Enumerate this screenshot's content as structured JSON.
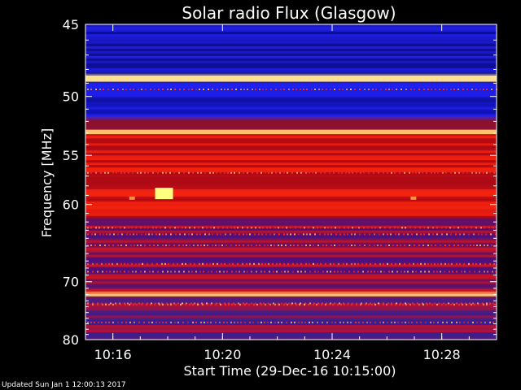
{
  "chart_data": {
    "type": "heatmap",
    "title": "Solar radio Flux (Glasgow)",
    "xlabel": "Start Time (29-Dec-16 10:15:00)",
    "ylabel": "Frequency [MHz]",
    "x_unit": "time",
    "xlim": [
      "10:15:00",
      "10:30:00"
    ],
    "x_ticks": [
      "10:16",
      "10:20",
      "10:24",
      "10:28"
    ],
    "x_tick_minutes": [
      16,
      20,
      24,
      28
    ],
    "ylim": [
      45,
      80
    ],
    "y_ticks": [
      45,
      50,
      55,
      60,
      70,
      80
    ],
    "y_scale": "reciprocal",
    "intensity_bands": [
      {
        "f_min": 45.0,
        "f_max": 48.3,
        "level": "low",
        "color": "#1010a8"
      },
      {
        "f_min": 48.3,
        "f_max": 48.9,
        "level": "very-high",
        "color": "#ffe090"
      },
      {
        "f_min": 48.9,
        "f_max": 51.6,
        "level": "low",
        "color": "#1818d8"
      },
      {
        "f_min": 51.6,
        "f_max": 52.7,
        "level": "moderate",
        "color": "#8c1030"
      },
      {
        "f_min": 52.7,
        "f_max": 53.1,
        "level": "very-high",
        "color": "#ffc070"
      },
      {
        "f_min": 53.1,
        "f_max": 61.5,
        "level": "high",
        "color": "#d01010"
      },
      {
        "f_min": 61.5,
        "f_max": 71.5,
        "level": "moderate",
        "color": "#901040"
      },
      {
        "f_min": 71.5,
        "f_max": 72.3,
        "level": "very-high",
        "color": "#ffc070"
      },
      {
        "f_min": 72.3,
        "f_max": 80.0,
        "level": "moderate-low",
        "color": "#701860"
      }
    ],
    "bright_features": [
      {
        "time": "10:17:52",
        "freq_mhz": 58.8,
        "color": "#ffff80"
      },
      {
        "time": "10:16:42",
        "freq_mhz": 59.3,
        "color": "#ff9040"
      },
      {
        "time": "10:26:58",
        "freq_mhz": 59.3,
        "color": "#ff9040"
      }
    ]
  },
  "footer": "Updated Sun Jan  1 12:00:13 2017",
  "colors": {
    "background": "#000000",
    "text": "#ffffff"
  }
}
